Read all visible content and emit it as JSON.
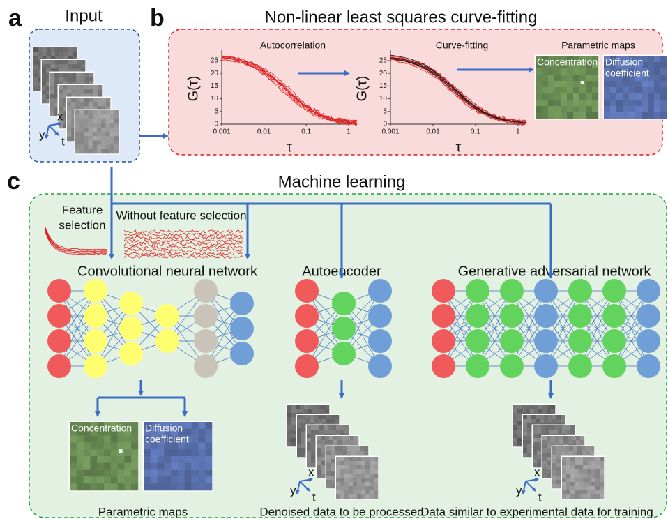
{
  "panel_labels": [
    "a",
    "b",
    "c"
  ],
  "input": {
    "title": "Input",
    "axes": [
      "x",
      "y",
      "t"
    ]
  },
  "curve_fitting": {
    "title": "Non-linear least squares curve-fitting",
    "plots": [
      {
        "title": "Autocorrelation",
        "y_label": "G(τ)",
        "x_label": "τ",
        "y_ticks": [
          25,
          20,
          15,
          10,
          5,
          0
        ],
        "x_ticks": [
          0.001,
          0.01,
          0.1,
          1
        ]
      },
      {
        "title": "Curve-fitting",
        "y_label": "G(τ)",
        "x_label": "τ",
        "y_ticks": [
          25,
          20,
          15,
          10,
          5,
          0
        ],
        "x_ticks": [
          0.001,
          0.01,
          0.1,
          1
        ]
      }
    ],
    "maps": {
      "title": "Parametric maps",
      "concentration": [
        "Concentration"
      ],
      "diffusion": [
        "Diffusion",
        "coefficient"
      ]
    }
  },
  "machine_learning": {
    "title": "Machine learning",
    "feature_selection": [
      "Feature",
      "selection"
    ],
    "without_feature_selection": "Without feature selection",
    "networks": [
      "Convolutional neural network",
      "Autoencoder",
      "Generative adversarial network"
    ],
    "outputs": [
      {
        "label": "Parametric maps",
        "concentration": [
          "Concentration"
        ],
        "diffusion": [
          "Diffusion",
          "coefficient"
        ]
      },
      {
        "label": "Denoised data to be processed",
        "axes": [
          "x",
          "y",
          "t"
        ]
      },
      {
        "label": "Data similar to experimental data for training",
        "axes": [
          "x",
          "y",
          "t"
        ]
      }
    ]
  }
}
